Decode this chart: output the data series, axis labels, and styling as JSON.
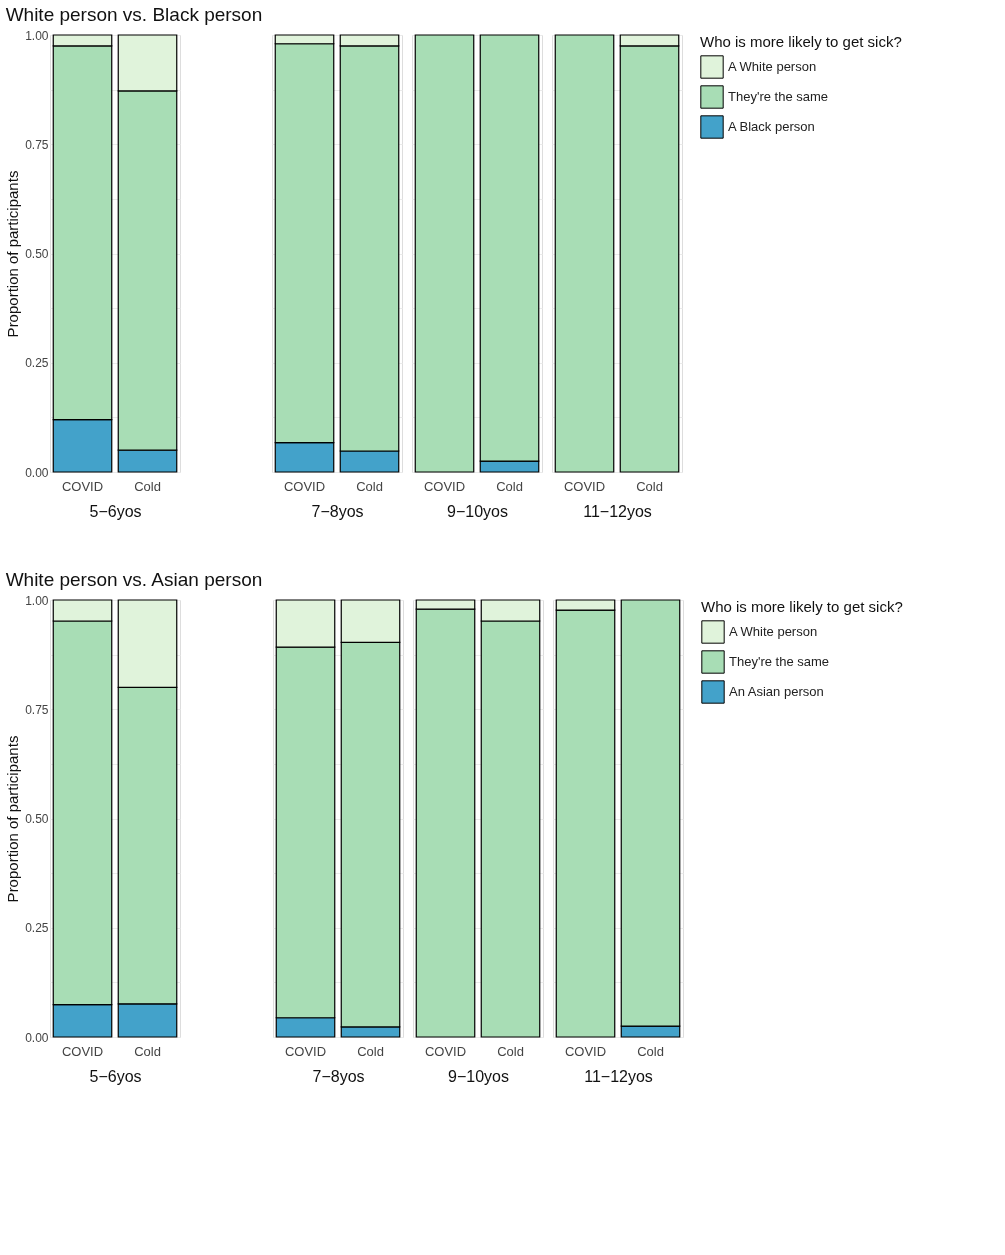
{
  "chart_data": [
    {
      "type": "bar",
      "stacked": true,
      "title": "White person vs. Black person",
      "ylabel": "Proportion of participants",
      "xlabel": "5−6yos",
      "categories": [
        "COVID",
        "Cold"
      ],
      "ylim": [
        0,
        1
      ],
      "yticks": [
        {
          "value": 0,
          "label": "0.00"
        },
        {
          "value": 0.125,
          "label": null
        },
        {
          "value": 0.25,
          "label": "0.25"
        },
        {
          "value": 0.375,
          "label": null
        },
        {
          "value": 0.5,
          "label": "0.50"
        },
        {
          "value": 0.625,
          "label": null
        },
        {
          "value": 0.75,
          "label": "0.75"
        },
        {
          "value": 0.875,
          "label": null
        },
        {
          "value": 1,
          "label": "1.00"
        }
      ],
      "grid": true,
      "legend": false,
      "series": [
        {
          "color": "#43a2ca",
          "values": [
            0.12,
            0.05
          ]
        },
        {
          "color": "#a8ddb5",
          "values": [
            0.855,
            0.822
          ]
        },
        {
          "color": "#e0f3db",
          "values": [
            0.025,
            0.128
          ]
        }
      ]
    },
    {
      "type": "bar",
      "stacked": true,
      "xlabel": "7−8yos",
      "categories": [
        "COVID",
        "Cold"
      ],
      "ylim": [
        0,
        1
      ],
      "yticks": [
        {
          "value": 0,
          "label": null
        },
        {
          "value": 0.125,
          "label": null
        },
        {
          "value": 0.25,
          "label": null
        },
        {
          "value": 0.375,
          "label": null
        },
        {
          "value": 0.5,
          "label": null
        },
        {
          "value": 0.625,
          "label": null
        },
        {
          "value": 0.75,
          "label": null
        },
        {
          "value": 0.875,
          "label": null
        },
        {
          "value": 1,
          "label": null
        }
      ],
      "grid": true,
      "legend": false,
      "tick_labels": "x",
      "series": [
        {
          "color": "#43a2ca",
          "values": [
            0.067,
            0.048
          ]
        },
        {
          "color": "#a8ddb5",
          "values": [
            0.913,
            0.927
          ]
        },
        {
          "color": "#e0f3db",
          "values": [
            0.02,
            0.025
          ]
        }
      ]
    },
    {
      "type": "bar",
      "stacked": true,
      "xlabel": "9−10yos",
      "categories": [
        "COVID",
        "Cold"
      ],
      "ylim": [
        0,
        1
      ],
      "yticks": [
        {
          "value": 0,
          "label": null
        },
        {
          "value": 0.125,
          "label": null
        },
        {
          "value": 0.25,
          "label": null
        },
        {
          "value": 0.375,
          "label": null
        },
        {
          "value": 0.5,
          "label": null
        },
        {
          "value": 0.625,
          "label": null
        },
        {
          "value": 0.75,
          "label": null
        },
        {
          "value": 0.875,
          "label": null
        },
        {
          "value": 1,
          "label": null
        }
      ],
      "grid": true,
      "legend": false,
      "tick_labels": "x",
      "series": [
        {
          "color": "#43a2ca",
          "values": [
            0,
            0.025
          ]
        },
        {
          "color": "#a8ddb5",
          "values": [
            1,
            0.975
          ]
        },
        {
          "color": "#e0f3db",
          "values": [
            0,
            0
          ]
        }
      ]
    },
    {
      "type": "bar",
      "stacked": true,
      "xlabel": "11−12yos",
      "legend_title": "Who is more likely to get sick?",
      "categories": [
        "COVID",
        "Cold"
      ],
      "ylim": [
        0,
        1
      ],
      "yticks": [
        {
          "value": 0,
          "label": null
        },
        {
          "value": 0.125,
          "label": null
        },
        {
          "value": 0.25,
          "label": null
        },
        {
          "value": 0.375,
          "label": null
        },
        {
          "value": 0.5,
          "label": null
        },
        {
          "value": 0.625,
          "label": null
        },
        {
          "value": 0.75,
          "label": null
        },
        {
          "value": 0.875,
          "label": null
        },
        {
          "value": 1,
          "label": null
        }
      ],
      "grid": true,
      "legend": "right",
      "tick_labels": "x",
      "series": [
        {
          "name": "A Black person",
          "color": "#43a2ca",
          "values": [
            0,
            0
          ]
        },
        {
          "name": "They're the same",
          "color": "#a8ddb5",
          "values": [
            1,
            0.975
          ]
        },
        {
          "name": "A White person",
          "color": "#e0f3db",
          "values": [
            0,
            0.025
          ]
        }
      ]
    },
    {
      "type": "bar",
      "stacked": true,
      "title": "White person vs. Asian person",
      "ylabel": "Proportion of participants",
      "xlabel": "5−6yos",
      "categories": [
        "COVID",
        "Cold"
      ],
      "ylim": [
        0,
        1
      ],
      "yticks": [
        {
          "value": 0,
          "label": "0.00"
        },
        {
          "value": 0.125,
          "label": null
        },
        {
          "value": 0.25,
          "label": "0.25"
        },
        {
          "value": 0.375,
          "label": null
        },
        {
          "value": 0.5,
          "label": "0.50"
        },
        {
          "value": 0.625,
          "label": null
        },
        {
          "value": 0.75,
          "label": "0.75"
        },
        {
          "value": 0.875,
          "label": null
        },
        {
          "value": 1,
          "label": "1.00"
        }
      ],
      "grid": true,
      "legend": false,
      "series": [
        {
          "color": "#43a2ca",
          "values": [
            0.074,
            0.076
          ]
        },
        {
          "color": "#a8ddb5",
          "values": [
            0.878,
            0.724
          ]
        },
        {
          "color": "#e0f3db",
          "values": [
            0.048,
            0.2
          ]
        }
      ]
    },
    {
      "type": "bar",
      "stacked": true,
      "xlabel": "7−8yos",
      "categories": [
        "COVID",
        "Cold"
      ],
      "ylim": [
        0,
        1
      ],
      "yticks": [
        {
          "value": 0,
          "label": null
        },
        {
          "value": 0.125,
          "label": null
        },
        {
          "value": 0.25,
          "label": null
        },
        {
          "value": 0.375,
          "label": null
        },
        {
          "value": 0.5,
          "label": null
        },
        {
          "value": 0.625,
          "label": null
        },
        {
          "value": 0.75,
          "label": null
        },
        {
          "value": 0.875,
          "label": null
        },
        {
          "value": 1,
          "label": null
        }
      ],
      "grid": true,
      "legend": false,
      "tick_labels": "x",
      "series": [
        {
          "color": "#43a2ca",
          "values": [
            0.044,
            0.023
          ]
        },
        {
          "color": "#a8ddb5",
          "values": [
            0.848,
            0.88
          ]
        },
        {
          "color": "#e0f3db",
          "values": [
            0.108,
            0.097
          ]
        }
      ]
    },
    {
      "type": "bar",
      "stacked": true,
      "xlabel": "9−10yos",
      "categories": [
        "COVID",
        "Cold"
      ],
      "ylim": [
        0,
        1
      ],
      "yticks": [
        {
          "value": 0,
          "label": null
        },
        {
          "value": 0.125,
          "label": null
        },
        {
          "value": 0.25,
          "label": null
        },
        {
          "value": 0.375,
          "label": null
        },
        {
          "value": 0.5,
          "label": null
        },
        {
          "value": 0.625,
          "label": null
        },
        {
          "value": 0.75,
          "label": null
        },
        {
          "value": 0.875,
          "label": null
        },
        {
          "value": 1,
          "label": null
        }
      ],
      "grid": true,
      "legend": false,
      "tick_labels": "x",
      "series": [
        {
          "color": "#43a2ca",
          "values": [
            0,
            0
          ]
        },
        {
          "color": "#a8ddb5",
          "values": [
            0.979,
            0.952
          ]
        },
        {
          "color": "#e0f3db",
          "values": [
            0.021,
            0.048
          ]
        }
      ]
    },
    {
      "type": "bar",
      "stacked": true,
      "xlabel": "11−12yos",
      "legend_title": "Who is more likely to get sick?",
      "categories": [
        "COVID",
        "Cold"
      ],
      "ylim": [
        0,
        1
      ],
      "yticks": [
        {
          "value": 0,
          "label": null
        },
        {
          "value": 0.125,
          "label": null
        },
        {
          "value": 0.25,
          "label": null
        },
        {
          "value": 0.375,
          "label": null
        },
        {
          "value": 0.5,
          "label": null
        },
        {
          "value": 0.625,
          "label": null
        },
        {
          "value": 0.75,
          "label": null
        },
        {
          "value": 0.875,
          "label": null
        },
        {
          "value": 1,
          "label": null
        }
      ],
      "grid": true,
      "legend": "right",
      "tick_labels": "x",
      "series": [
        {
          "name": "An Asian person",
          "color": "#43a2ca",
          "values": [
            0,
            0.025
          ]
        },
        {
          "name": "They're the same",
          "color": "#a8ddb5",
          "values": [
            0.977,
            0.975
          ]
        },
        {
          "name": "A White person",
          "color": "#e0f3db",
          "values": [
            0.023,
            0
          ]
        }
      ]
    }
  ]
}
